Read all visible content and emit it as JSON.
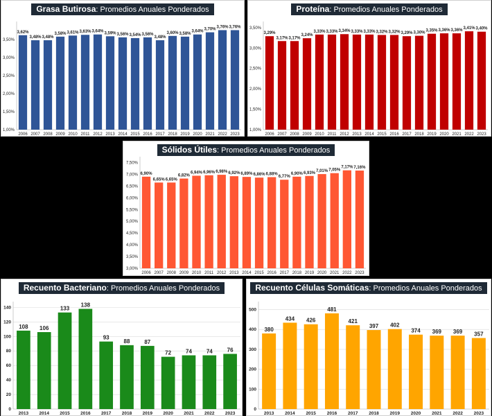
{
  "chart_data": [
    {
      "id": "grasa",
      "type": "bar",
      "title_bold": "Grasa Butirosa",
      "title_rest": ": Promedios Anuales Ponderados",
      "categories": [
        "2006",
        "2007",
        "2008",
        "2009",
        "2010",
        "2011",
        "2012",
        "2013",
        "2014",
        "2015",
        "2016",
        "2017",
        "2018",
        "2019",
        "2020",
        "2021",
        "2022",
        "2023"
      ],
      "values": [
        3.62,
        3.48,
        3.48,
        3.58,
        3.61,
        3.63,
        3.64,
        3.59,
        3.56,
        3.54,
        3.56,
        3.48,
        3.6,
        3.58,
        3.64,
        3.7,
        3.76,
        3.76
      ],
      "value_labels": [
        "3,62%",
        "3,48%",
        "3,48%",
        "3,58%",
        "3,61%",
        "3,63%",
        "3,64%",
        "3,59%",
        "3,56%",
        "3,54%",
        "3,56%",
        "3,48%",
        "3,60%",
        "3,58%",
        "3,64%",
        "3,70%",
        "3,76%",
        "3,76%"
      ],
      "yticks": [
        "1,00%",
        "1,50%",
        "2,00%",
        "2,50%",
        "3,00%",
        "3,50%"
      ],
      "ylim": [
        1.0,
        4.0
      ],
      "ytick_values": [
        1.0,
        1.5,
        2.0,
        2.5,
        3.0,
        3.5
      ],
      "color": "#2f5597",
      "grid": false
    },
    {
      "id": "proteina",
      "type": "bar",
      "title_bold": "Proteína",
      "title_rest": ": Promedios Anuales Ponderados",
      "categories": [
        "2006",
        "2007",
        "2008",
        "2009",
        "2010",
        "2011",
        "2012",
        "2013",
        "2014",
        "2015",
        "2016",
        "2017",
        "2018",
        "2019",
        "2020",
        "2021",
        "2022",
        "2023"
      ],
      "values": [
        3.29,
        3.17,
        3.17,
        3.24,
        3.33,
        3.33,
        3.34,
        3.33,
        3.33,
        3.32,
        3.32,
        3.29,
        3.3,
        3.35,
        3.36,
        3.36,
        3.41,
        3.4
      ],
      "value_labels": [
        "3,29%",
        "3,17%",
        "3,17%",
        "3,24%",
        "3,33%",
        "3,33%",
        "3,34%",
        "3,33%",
        "3,33%",
        "3,32%",
        "3,32%",
        "3,29%",
        "3,30%",
        "3,35%",
        "3,36%",
        "3,36%",
        "3,41%",
        "3,40%"
      ],
      "yticks": [
        "1,00%",
        "1,50%",
        "2,00%",
        "2,50%",
        "3,00%",
        "3,50%"
      ],
      "ylim": [
        1.0,
        3.65
      ],
      "ytick_values": [
        1.0,
        1.5,
        2.0,
        2.5,
        3.0,
        3.5
      ],
      "color": "#c00000",
      "grid": false
    },
    {
      "id": "solidos",
      "type": "bar",
      "title_bold": "Sólidos Útiles",
      "title_rest": ": Promedios Anuales Ponderados",
      "categories": [
        "2006",
        "2007",
        "2008",
        "2009",
        "2010",
        "2011",
        "2012",
        "2013",
        "2014",
        "2015",
        "2016",
        "2017",
        "2018",
        "2019",
        "2020",
        "2021",
        "2022",
        "2023"
      ],
      "values": [
        6.9,
        6.65,
        6.65,
        6.82,
        6.94,
        6.96,
        6.98,
        6.92,
        6.89,
        6.86,
        6.88,
        6.77,
        6.9,
        6.93,
        7.01,
        7.05,
        7.17,
        7.16
      ],
      "value_labels": [
        "6,90%",
        "6,65%",
        "6,65%",
        "6,82%",
        "6,94%",
        "6,96%",
        "6,98%",
        "6,92%",
        "6,89%",
        "6,86%",
        "6,88%",
        "6,77%",
        "6,90%",
        "6,93%",
        "7,01%",
        "7,05%",
        "7,17%",
        "7,16%"
      ],
      "yticks": [
        "3,00%",
        "3,50%",
        "4,00%",
        "4,50%",
        "5,00%",
        "5,50%",
        "6,00%",
        "6,50%",
        "7,00%",
        "7,50%"
      ],
      "ylim": [
        3.0,
        7.75
      ],
      "ytick_values": [
        3.0,
        3.5,
        4.0,
        4.5,
        5.0,
        5.5,
        6.0,
        6.5,
        7.0,
        7.5
      ],
      "color": "#ff5733",
      "grid": false
    },
    {
      "id": "bacteriano",
      "type": "bar",
      "title_bold": "Recuento Bacteriano",
      "title_rest": ": Promedios Anuales Ponderados",
      "categories": [
        "2013",
        "2014",
        "2015",
        "2016",
        "2017",
        "2018",
        "2019",
        "2020",
        "2021",
        "2022",
        "2023"
      ],
      "values": [
        108,
        106,
        133,
        138,
        93,
        88,
        87,
        72,
        74,
        74,
        76
      ],
      "value_labels": [
        "108",
        "106",
        "133",
        "138",
        "93",
        "88",
        "87",
        "72",
        "74",
        "74",
        "76"
      ],
      "yticks": [
        "0",
        "20",
        "40",
        "60",
        "80",
        "100",
        "120",
        "140"
      ],
      "ylim": [
        0,
        148
      ],
      "ytick_values": [
        0,
        20,
        40,
        60,
        80,
        100,
        120,
        140
      ],
      "color": "#1a8a1a",
      "grid": true
    },
    {
      "id": "celulas",
      "type": "bar",
      "title_bold": "Recuento Células Somáticas",
      "title_rest": ": Promedios Anuales Ponderados",
      "categories": [
        "2013",
        "2014",
        "2015",
        "2016",
        "2017",
        "2018",
        "2019",
        "2020",
        "2021",
        "2022",
        "2023"
      ],
      "values": [
        380,
        434,
        426,
        481,
        421,
        397,
        402,
        374,
        369,
        369,
        357
      ],
      "value_labels": [
        "380",
        "434",
        "426",
        "481",
        "421",
        "397",
        "402",
        "374",
        "369",
        "369",
        "357"
      ],
      "yticks": [
        "0",
        "100",
        "200",
        "300",
        "400",
        "500"
      ],
      "ylim": [
        0,
        540
      ],
      "ytick_values": [
        0,
        100,
        200,
        300,
        400,
        500
      ],
      "color": "#ffa500",
      "grid": true
    }
  ]
}
